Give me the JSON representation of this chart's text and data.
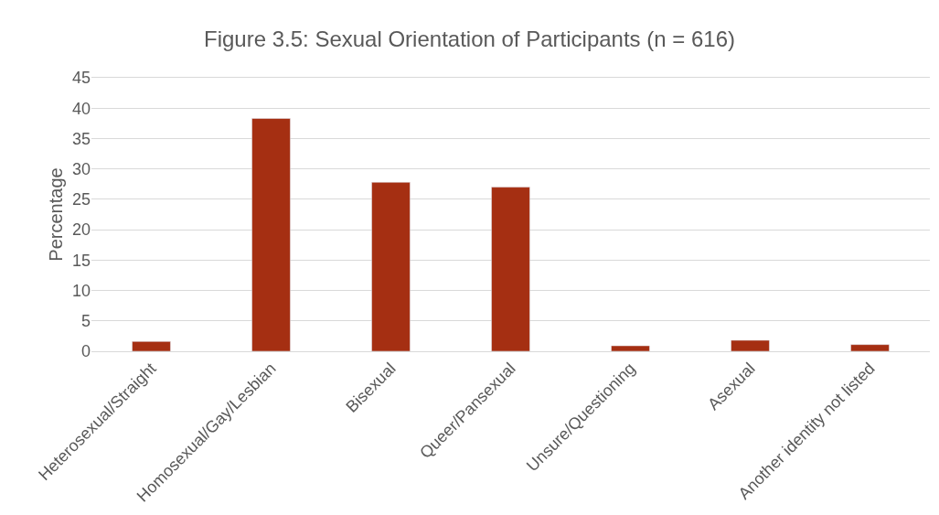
{
  "chart_data": {
    "type": "bar",
    "title": "Figure 3.5: Sexual Orientation of Participants (n = 616)",
    "ylabel": "Percentage",
    "categories": [
      "Heterosexual/Straight",
      "Homosexual/Gay/Lesbian",
      "Bisexual",
      "Queer/Pansexual",
      "Unsure/Questioning",
      "Asexual",
      "Another identity not listed"
    ],
    "values": [
      1.6,
      38.3,
      27.8,
      27.0,
      0.9,
      1.8,
      1.1
    ],
    "color": "#a52f12",
    "ylim": [
      0,
      45
    ],
    "yticks": [
      0,
      5,
      10,
      15,
      20,
      25,
      30,
      35,
      40,
      45
    ],
    "grid": "y"
  }
}
